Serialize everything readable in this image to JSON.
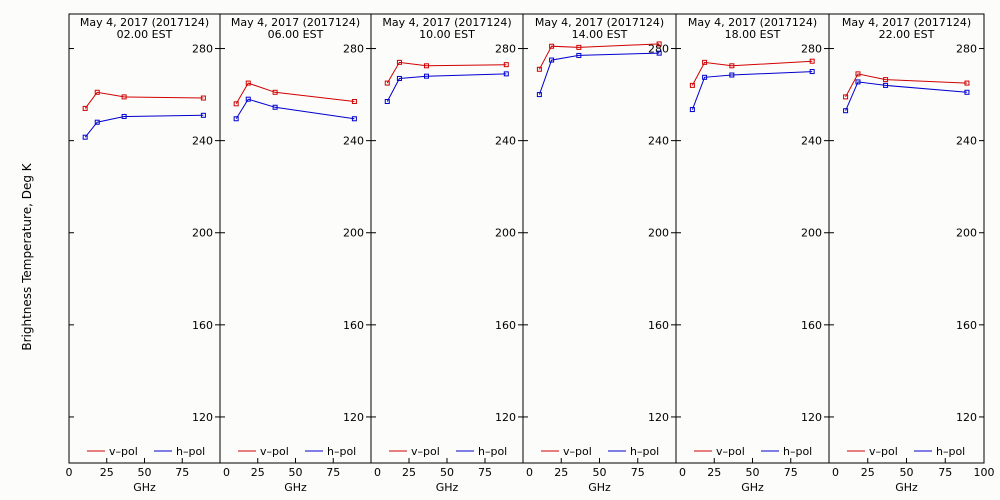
{
  "chart_data": {
    "type": "line",
    "ylabel": "Brightness Temperature, Deg K",
    "xlabel": "GHz",
    "xlim": [
      0,
      100
    ],
    "ylim": [
      100,
      295
    ],
    "x_ticks": [
      0,
      25,
      50,
      75,
      100
    ],
    "y_ticks": [
      120,
      160,
      200,
      240,
      280
    ],
    "legend": {
      "placement": "bottom",
      "entries": [
        "v–pol",
        "h–pol"
      ]
    },
    "colors": {
      "v_pol": "#d00000",
      "h_pol": "#0000d0"
    },
    "x": [
      10.7,
      18.7,
      36.5,
      89.0
    ],
    "panels": [
      {
        "title": "May  4, 2017 (2017124)",
        "subtitle": "02.00 EST",
        "series": [
          {
            "name": "v–pol",
            "values": [
              254,
              261,
              259,
              258.5
            ]
          },
          {
            "name": "h–pol",
            "values": [
              241.5,
              248,
              250.5,
              251
            ]
          }
        ]
      },
      {
        "title": "May  4, 2017 (2017124)",
        "subtitle": "06.00 EST",
        "series": [
          {
            "name": "v–pol",
            "values": [
              256,
              265,
              261,
              257
            ]
          },
          {
            "name": "h–pol",
            "values": [
              249.5,
              258,
              254.5,
              249.5
            ]
          }
        ]
      },
      {
        "title": "May  4, 2017 (2017124)",
        "subtitle": "10.00 EST",
        "series": [
          {
            "name": "v–pol",
            "values": [
              265,
              274,
              272.5,
              273
            ]
          },
          {
            "name": "h–pol",
            "values": [
              257,
              267,
              268,
              269
            ]
          }
        ]
      },
      {
        "title": "May  4, 2017 (2017124)",
        "subtitle": "14.00 EST",
        "series": [
          {
            "name": "v–pol",
            "values": [
              271,
              281,
              280.5,
              282
            ]
          },
          {
            "name": "h–pol",
            "values": [
              260,
              275,
              277,
              278
            ]
          }
        ]
      },
      {
        "title": "May  4, 2017 (2017124)",
        "subtitle": "18.00 EST",
        "series": [
          {
            "name": "v–pol",
            "values": [
              264,
              274,
              272.5,
              274.5
            ]
          },
          {
            "name": "h–pol",
            "values": [
              253.5,
              267.5,
              268.5,
              270
            ]
          }
        ]
      },
      {
        "title": "May  4, 2017 (2017124)",
        "subtitle": "22.00 EST",
        "series": [
          {
            "name": "v–pol",
            "values": [
              259,
              269,
              266.5,
              265
            ]
          },
          {
            "name": "h–pol",
            "values": [
              253,
              265.5,
              264,
              261
            ]
          }
        ]
      }
    ]
  }
}
